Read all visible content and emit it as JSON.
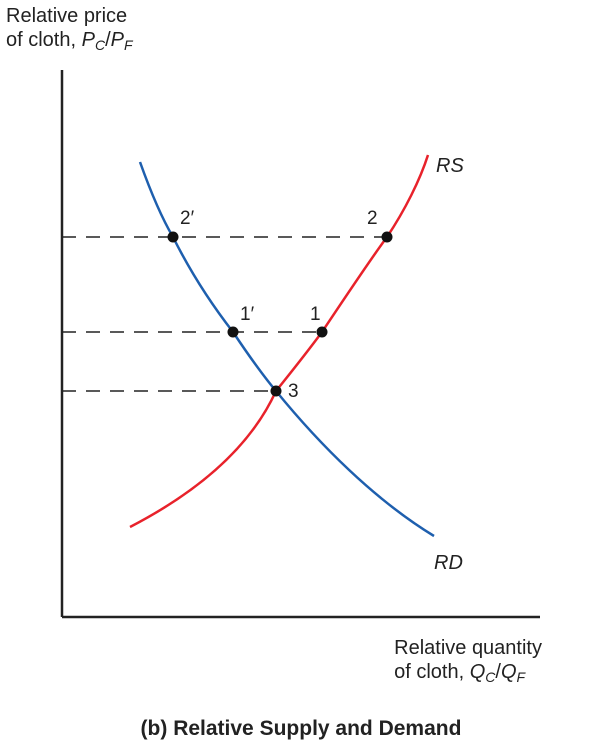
{
  "y_axis": {
    "line1": "Relative price",
    "line2_prefix": "of cloth, ",
    "num_var": "P",
    "num_sub": "C",
    "slash": "/",
    "den_var": "P",
    "den_sub": "F"
  },
  "x_axis": {
    "line1": "Relative quantity",
    "line2_prefix": "of cloth, ",
    "num_var": "Q",
    "num_sub": "C",
    "slash": "/",
    "den_var": "Q",
    "den_sub": "F"
  },
  "curves": {
    "rs": {
      "label": "RS",
      "color": "#e8222b"
    },
    "rd": {
      "label": "RD",
      "color": "#1e5fae"
    }
  },
  "points": [
    {
      "label": "2′",
      "curve": "rd"
    },
    {
      "label": "2",
      "curve": "rs"
    },
    {
      "label": "1′",
      "curve": "rd"
    },
    {
      "label": "1",
      "curve": "rs"
    },
    {
      "label": "3",
      "curve": "both"
    }
  ],
  "caption": "(b) Relative Supply and Demand"
}
